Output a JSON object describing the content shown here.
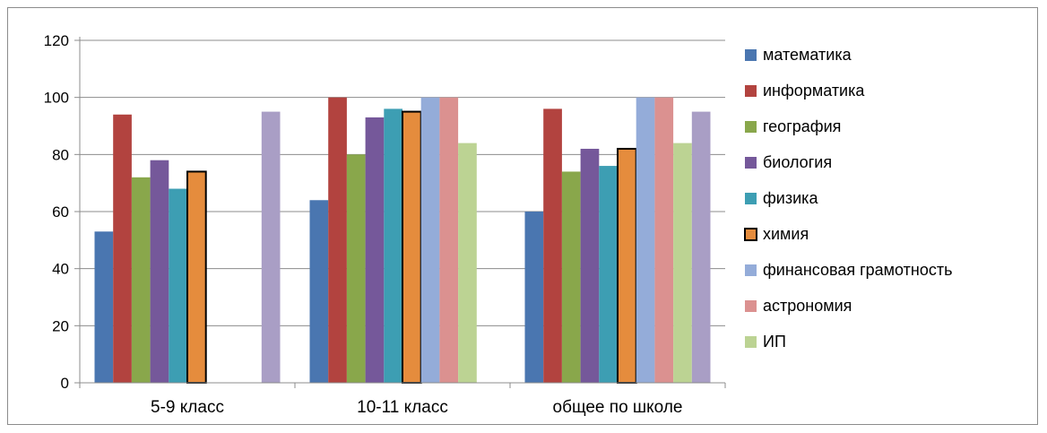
{
  "chart_data": {
    "type": "bar",
    "title": "",
    "xlabel": "",
    "ylabel": "",
    "categories": [
      "5-9 класс",
      "10-11 класс",
      "общее по школе"
    ],
    "ylim": [
      0,
      120
    ],
    "yticks": [
      0,
      20,
      40,
      60,
      80,
      100,
      120
    ],
    "grid": true,
    "legend_position": "right",
    "series": [
      {
        "name": "математика",
        "color": "#4a76b0",
        "values": [
          53,
          64,
          60
        ]
      },
      {
        "name": "информатика",
        "color": "#b2433f",
        "values": [
          94,
          100,
          96
        ]
      },
      {
        "name": "география",
        "color": "#89a74b",
        "values": [
          72,
          80,
          74
        ]
      },
      {
        "name": "биология",
        "color": "#75589a",
        "values": [
          78,
          93,
          82
        ]
      },
      {
        "name": "физика",
        "color": "#3d9eb3",
        "values": [
          68,
          96,
          76
        ]
      },
      {
        "name": "химия",
        "color": "#e58c3d",
        "outlined": true,
        "values": [
          74,
          95,
          82
        ]
      },
      {
        "name": "финансовая грамотность",
        "color": "#94acd9",
        "values": [
          null,
          100,
          100
        ]
      },
      {
        "name": "астрономия",
        "color": "#db9190",
        "values": [
          null,
          100,
          100
        ]
      },
      {
        "name": "ИП",
        "color": "#bcd393",
        "values": [
          null,
          84,
          84
        ]
      },
      {
        "name": "",
        "color": "#a99ec5",
        "values": [
          95,
          null,
          95
        ]
      }
    ]
  }
}
